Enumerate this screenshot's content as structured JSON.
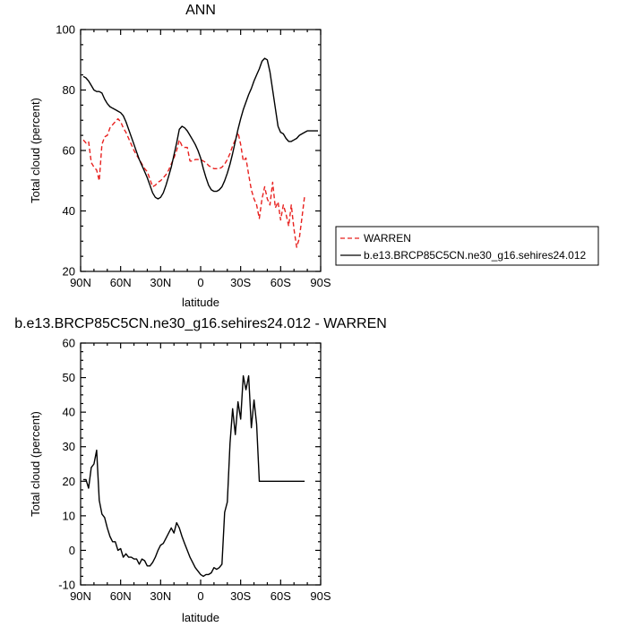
{
  "chart_data": [
    {
      "type": "line",
      "title": "ANN",
      "xlabel": "latitude",
      "ylabel": "Total cloud (percent)",
      "xlim": [
        90,
        -90
      ],
      "ylim": [
        20,
        100
      ],
      "x_ticks": [
        90,
        60,
        30,
        0,
        -30,
        -60,
        -90
      ],
      "x_tick_labels": [
        "90N",
        "60N",
        "30N",
        "0",
        "30S",
        "60S",
        "90S"
      ],
      "y_ticks": [
        20,
        40,
        60,
        80,
        100
      ],
      "y_tick_labels": [
        "20",
        "40",
        "60",
        "80",
        "100"
      ],
      "legend_placement": "right",
      "series": [
        {
          "name": "WARREN",
          "color": "#e8211f",
          "dash": "dashed",
          "x": [
            88,
            86,
            84,
            82,
            80,
            78,
            76,
            74,
            72,
            70,
            68,
            66,
            64,
            62,
            60,
            58,
            56,
            54,
            52,
            50,
            48,
            46,
            44,
            42,
            40,
            38,
            36,
            34,
            32,
            30,
            28,
            26,
            24,
            22,
            20,
            18,
            16,
            14,
            12,
            10,
            8,
            6,
            4,
            2,
            0,
            -2,
            -4,
            -6,
            -8,
            -10,
            -12,
            -14,
            -16,
            -18,
            -20,
            -22,
            -24,
            -26,
            -28,
            -30,
            -32,
            -34,
            -36,
            -38,
            -40,
            -42,
            -44,
            -46,
            -48,
            -50,
            -52,
            -54,
            -56,
            -58,
            -60,
            -62,
            -64,
            -66,
            -68,
            -70,
            -72,
            -74,
            -76,
            -78
          ],
          "y": [
            63.5,
            62.5,
            63.0,
            56.0,
            54.5,
            53.5,
            50.0,
            62.0,
            64.5,
            65.0,
            67.5,
            68.5,
            69.5,
            70.5,
            69.5,
            67.5,
            66.0,
            64.0,
            62.0,
            60.0,
            58.5,
            57.0,
            55.5,
            54.0,
            53.0,
            50.5,
            48.0,
            48.5,
            49.5,
            50.0,
            51.0,
            52.0,
            53.5,
            55.5,
            57.5,
            60.0,
            63.5,
            61.5,
            61.0,
            61.0,
            56.5,
            56.5,
            57.0,
            57.0,
            57.0,
            56.5,
            56.0,
            55.0,
            54.5,
            54.0,
            54.0,
            54.0,
            54.5,
            55.5,
            57.0,
            59.0,
            61.5,
            63.5,
            66.0,
            62.0,
            56.5,
            57.5,
            52.0,
            47.0,
            44.0,
            42.0,
            37.5,
            44.0,
            48.0,
            44.0,
            42.0,
            49.5,
            41.0,
            43.0,
            37.0,
            42.0,
            39.0,
            35.0,
            42.0,
            34.0,
            28.0,
            31.0,
            38.0,
            45.0
          ]
        },
        {
          "name": "b.e13.BRCP85C5CN.ne30_g16.sehires24.012",
          "color": "#000000",
          "dash": "solid",
          "x": [
            88,
            86,
            84,
            82,
            80,
            78,
            76,
            74,
            72,
            70,
            68,
            66,
            64,
            62,
            60,
            58,
            56,
            54,
            52,
            50,
            48,
            46,
            44,
            42,
            40,
            38,
            36,
            34,
            32,
            30,
            28,
            26,
            24,
            22,
            20,
            18,
            16,
            14,
            12,
            10,
            8,
            6,
            4,
            2,
            0,
            -2,
            -4,
            -6,
            -8,
            -10,
            -12,
            -14,
            -16,
            -18,
            -20,
            -22,
            -24,
            -26,
            -28,
            -30,
            -32,
            -34,
            -36,
            -38,
            -40,
            -42,
            -44,
            -46,
            -48,
            -50,
            -52,
            -54,
            -56,
            -58,
            -60,
            -62,
            -64,
            -66,
            -68,
            -70,
            -72,
            -74,
            -76,
            -78,
            -80,
            -82,
            -84,
            -86,
            -88
          ],
          "y": [
            84.5,
            84.0,
            83.0,
            81.5,
            80.0,
            79.5,
            79.5,
            79.0,
            77.0,
            75.5,
            74.5,
            74.0,
            73.5,
            73.0,
            72.5,
            71.5,
            69.5,
            67.0,
            64.5,
            62.0,
            59.5,
            57.0,
            55.0,
            53.0,
            51.0,
            48.5,
            46.0,
            44.5,
            44.0,
            44.5,
            46.0,
            48.5,
            51.5,
            54.5,
            58.5,
            62.5,
            67.0,
            68.0,
            67.5,
            66.5,
            65.0,
            63.5,
            62.0,
            60.0,
            57.5,
            54.0,
            51.0,
            48.5,
            47.0,
            46.5,
            46.5,
            47.0,
            48.0,
            50.0,
            52.5,
            55.5,
            59.0,
            63.0,
            67.0,
            70.5,
            73.5,
            76.0,
            78.5,
            80.5,
            83.0,
            85.0,
            87.0,
            89.5,
            90.5,
            90.0,
            86.0,
            80.0,
            74.0,
            68.0,
            66.0,
            65.5,
            64.0,
            63.0,
            63.0,
            63.5,
            64.0,
            65.0,
            65.5,
            66.0,
            66.5,
            66.5,
            66.5,
            66.5,
            66.5
          ]
        }
      ]
    },
    {
      "type": "line",
      "title": "b.e13.BRCP85C5CN.ne30_g16.sehires24.012 - WARREN",
      "xlabel": "latitude",
      "ylabel": "Total cloud (percent)",
      "xlim": [
        90,
        -90
      ],
      "ylim": [
        -10,
        60
      ],
      "x_ticks": [
        90,
        60,
        30,
        0,
        -30,
        -60,
        -90
      ],
      "x_tick_labels": [
        "90N",
        "60N",
        "30N",
        "0",
        "30S",
        "60S",
        "90S"
      ],
      "y_ticks": [
        -10,
        0,
        10,
        20,
        30,
        40,
        50,
        60
      ],
      "y_tick_labels": [
        "-10",
        "0",
        "10",
        "20",
        "30",
        "40",
        "50",
        "60"
      ],
      "series": [
        {
          "color": "#000000",
          "dash": "solid",
          "x": [
            88,
            86,
            84,
            82,
            80,
            78,
            76,
            74,
            72,
            70,
            68,
            66,
            64,
            62,
            60,
            58,
            56,
            54,
            52,
            50,
            48,
            46,
            44,
            42,
            40,
            38,
            36,
            34,
            32,
            30,
            28,
            26,
            24,
            22,
            20,
            18,
            16,
            14,
            12,
            10,
            8,
            6,
            4,
            2,
            0,
            -2,
            -4,
            -6,
            -8,
            -10,
            -12,
            -14,
            -16,
            -18,
            -20,
            -22,
            -24,
            -26,
            -28,
            -30,
            -32,
            -34,
            -36,
            -38,
            -40,
            -42,
            -44,
            -46,
            -48,
            -50,
            -52,
            -54,
            -56,
            -58,
            -60,
            -62,
            -64,
            -66,
            -68,
            -70,
            -72,
            -74,
            -76,
            -78
          ],
          "y": [
            20.5,
            20.5,
            18.0,
            24.0,
            25.0,
            29.0,
            14.5,
            10.5,
            9.5,
            6.5,
            4.0,
            2.5,
            2.5,
            0.0,
            0.5,
            -2.0,
            -1.0,
            -2.0,
            -2.0,
            -2.5,
            -2.5,
            -4.0,
            -2.5,
            -3.0,
            -4.5,
            -4.5,
            -3.5,
            -2.0,
            0.0,
            1.5,
            2.0,
            3.5,
            5.0,
            6.5,
            5.0,
            8.0,
            6.5,
            4.0,
            2.0,
            0.0,
            -2.0,
            -3.5,
            -5.0,
            -6.0,
            -7.0,
            -7.5,
            -7.0,
            -7.0,
            -6.5,
            -5.0,
            -5.5,
            -5.0,
            -4.0,
            11.0,
            14.0,
            31.0,
            41.0,
            33.5,
            43.0,
            38.0,
            50.5,
            46.5,
            50.5,
            35.5,
            43.5,
            36.5,
            20.0,
            20.0,
            20.0,
            20.0,
            20.0,
            20.0,
            20.0,
            20.0,
            20.0,
            20.0,
            20.0,
            20.0,
            20.0,
            20.0,
            20.0,
            20.0,
            20.0,
            20.0
          ]
        }
      ]
    }
  ]
}
